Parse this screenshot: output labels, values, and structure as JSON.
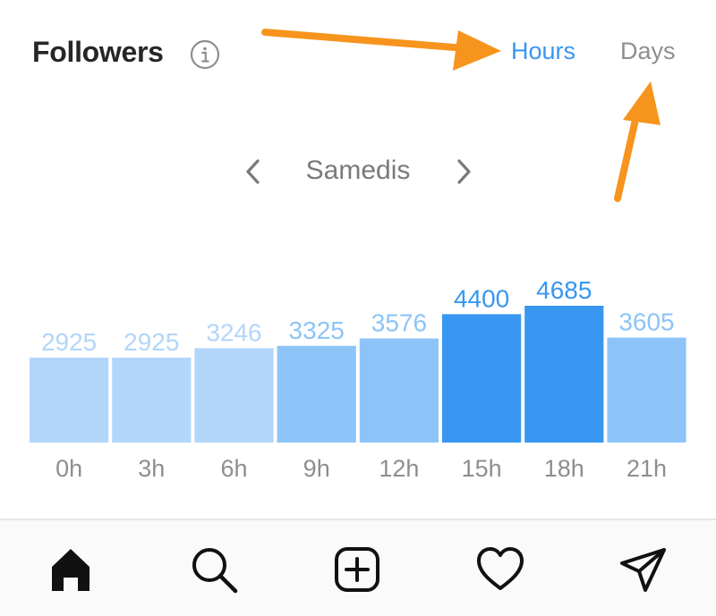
{
  "header": {
    "title": "Followers",
    "tabs": [
      {
        "label": "Hours",
        "active": true
      },
      {
        "label": "Days",
        "active": false
      }
    ]
  },
  "day_nav": {
    "label": "Samedis"
  },
  "chart_data": {
    "type": "bar",
    "categories": [
      "0h",
      "3h",
      "6h",
      "9h",
      "12h",
      "15h",
      "18h",
      "21h"
    ],
    "values": [
      2925,
      2925,
      3246,
      3325,
      3576,
      4400,
      4685,
      3605
    ],
    "title": "",
    "xlabel": "",
    "ylabel": "",
    "ylim": [
      0,
      4685
    ],
    "colors": {
      "low": "#b2d6fa",
      "medium": "#8dc4f8",
      "high": "#3897f0",
      "value_label_light": "#b2d6fa",
      "value_label_medium": "#8dc4f8",
      "value_label_dark": "#3897f0",
      "axis_label": "#8e8e8e"
    }
  },
  "bottom_nav": {
    "items": [
      {
        "icon": "home-icon",
        "active": true
      },
      {
        "icon": "search-icon",
        "active": false
      },
      {
        "icon": "add-post-icon",
        "active": false
      },
      {
        "icon": "heart-icon",
        "active": false
      },
      {
        "icon": "direct-send-icon",
        "active": false
      }
    ]
  },
  "colors": {
    "accent": "#3897f0",
    "annotation_arrow": "#f7941d",
    "text_primary": "#262626",
    "text_secondary": "#8e8e8e"
  }
}
